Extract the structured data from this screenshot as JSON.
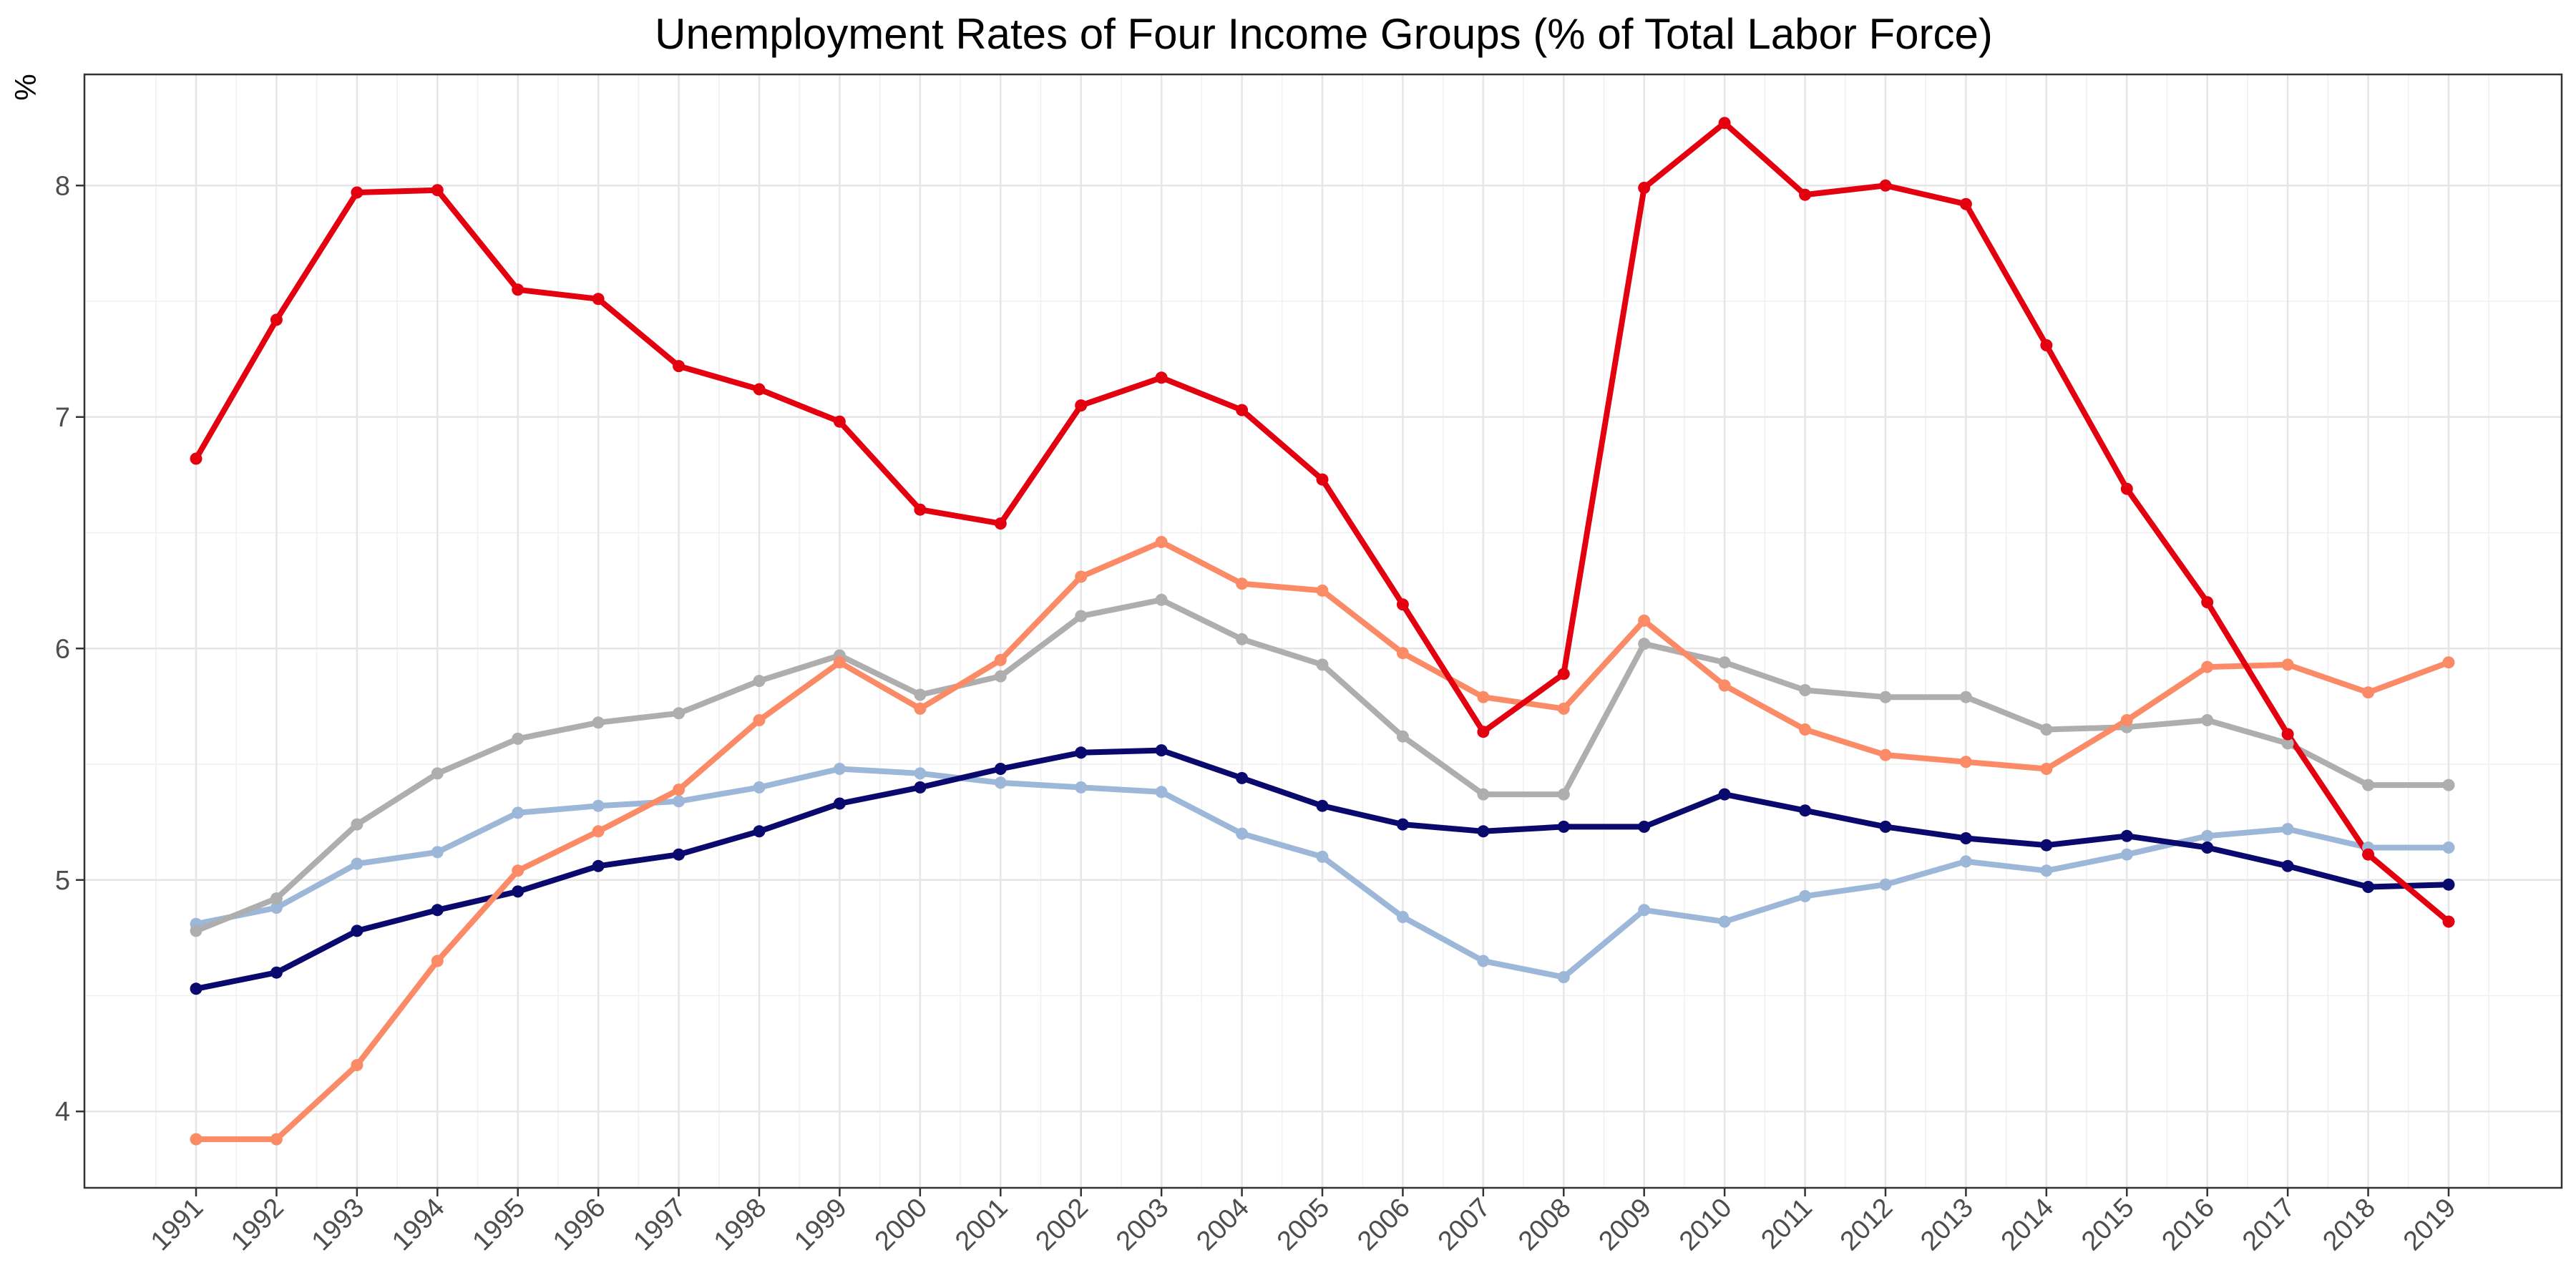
{
  "chart_data": {
    "type": "line",
    "title": "Unemployment Rates of Four Income Groups (% of Total Labor Force)",
    "xlabel": "",
    "ylabel": "%",
    "x": [
      "1991",
      "1992",
      "1993",
      "1994",
      "1995",
      "1996",
      "1997",
      "1998",
      "1999",
      "2000",
      "2001",
      "2002",
      "2003",
      "2004",
      "2005",
      "2006",
      "2007",
      "2008",
      "2009",
      "2010",
      "2011",
      "2012",
      "2013",
      "2014",
      "2015",
      "2016",
      "2017",
      "2018",
      "2019"
    ],
    "ylim": [
      3.67,
      8.48
    ],
    "yticks": [
      4,
      5,
      6,
      7,
      8
    ],
    "grid": true,
    "legend": "none",
    "series": [
      {
        "color": "#e3000f",
        "values": [
          6.82,
          7.42,
          7.97,
          7.98,
          7.55,
          7.51,
          7.22,
          7.12,
          6.98,
          6.6,
          6.54,
          7.05,
          7.17,
          7.03,
          6.73,
          6.19,
          5.64,
          5.89,
          7.99,
          8.27,
          7.96,
          8.0,
          7.92,
          7.31,
          6.69,
          6.2,
          5.63,
          5.11,
          4.82
        ]
      },
      {
        "color": "#fb8a66",
        "values": [
          3.88,
          3.88,
          4.2,
          4.65,
          5.04,
          5.21,
          5.39,
          5.69,
          5.94,
          5.74,
          5.95,
          6.31,
          6.46,
          6.28,
          6.25,
          5.98,
          5.79,
          5.74,
          6.12,
          5.84,
          5.65,
          5.54,
          5.51,
          5.48,
          5.69,
          5.92,
          5.93,
          5.81,
          5.94
        ]
      },
      {
        "color": "#aeaeae",
        "values": [
          4.78,
          4.92,
          5.24,
          5.46,
          5.61,
          5.68,
          5.72,
          5.86,
          5.97,
          5.8,
          5.88,
          6.14,
          6.21,
          6.04,
          5.93,
          5.62,
          5.37,
          5.37,
          6.02,
          5.94,
          5.82,
          5.79,
          5.79,
          5.65,
          5.66,
          5.69,
          5.59,
          5.41,
          5.41
        ]
      },
      {
        "color": "#9db7d9",
        "values": [
          4.81,
          4.88,
          5.07,
          5.12,
          5.29,
          5.32,
          5.34,
          5.4,
          5.48,
          5.46,
          5.42,
          5.4,
          5.38,
          5.2,
          5.1,
          4.84,
          4.65,
          4.58,
          4.87,
          4.82,
          4.93,
          4.98,
          5.08,
          5.04,
          5.11,
          5.19,
          5.22,
          5.14,
          5.14
        ]
      },
      {
        "color": "#0a0a6e",
        "values": [
          4.53,
          4.6,
          4.78,
          4.87,
          4.95,
          5.06,
          5.11,
          5.21,
          5.33,
          5.4,
          5.48,
          5.55,
          5.56,
          5.44,
          5.32,
          5.24,
          5.21,
          5.23,
          5.23,
          5.37,
          5.3,
          5.23,
          5.18,
          5.15,
          5.19,
          5.14,
          5.06,
          4.97,
          4.98
        ]
      }
    ]
  }
}
